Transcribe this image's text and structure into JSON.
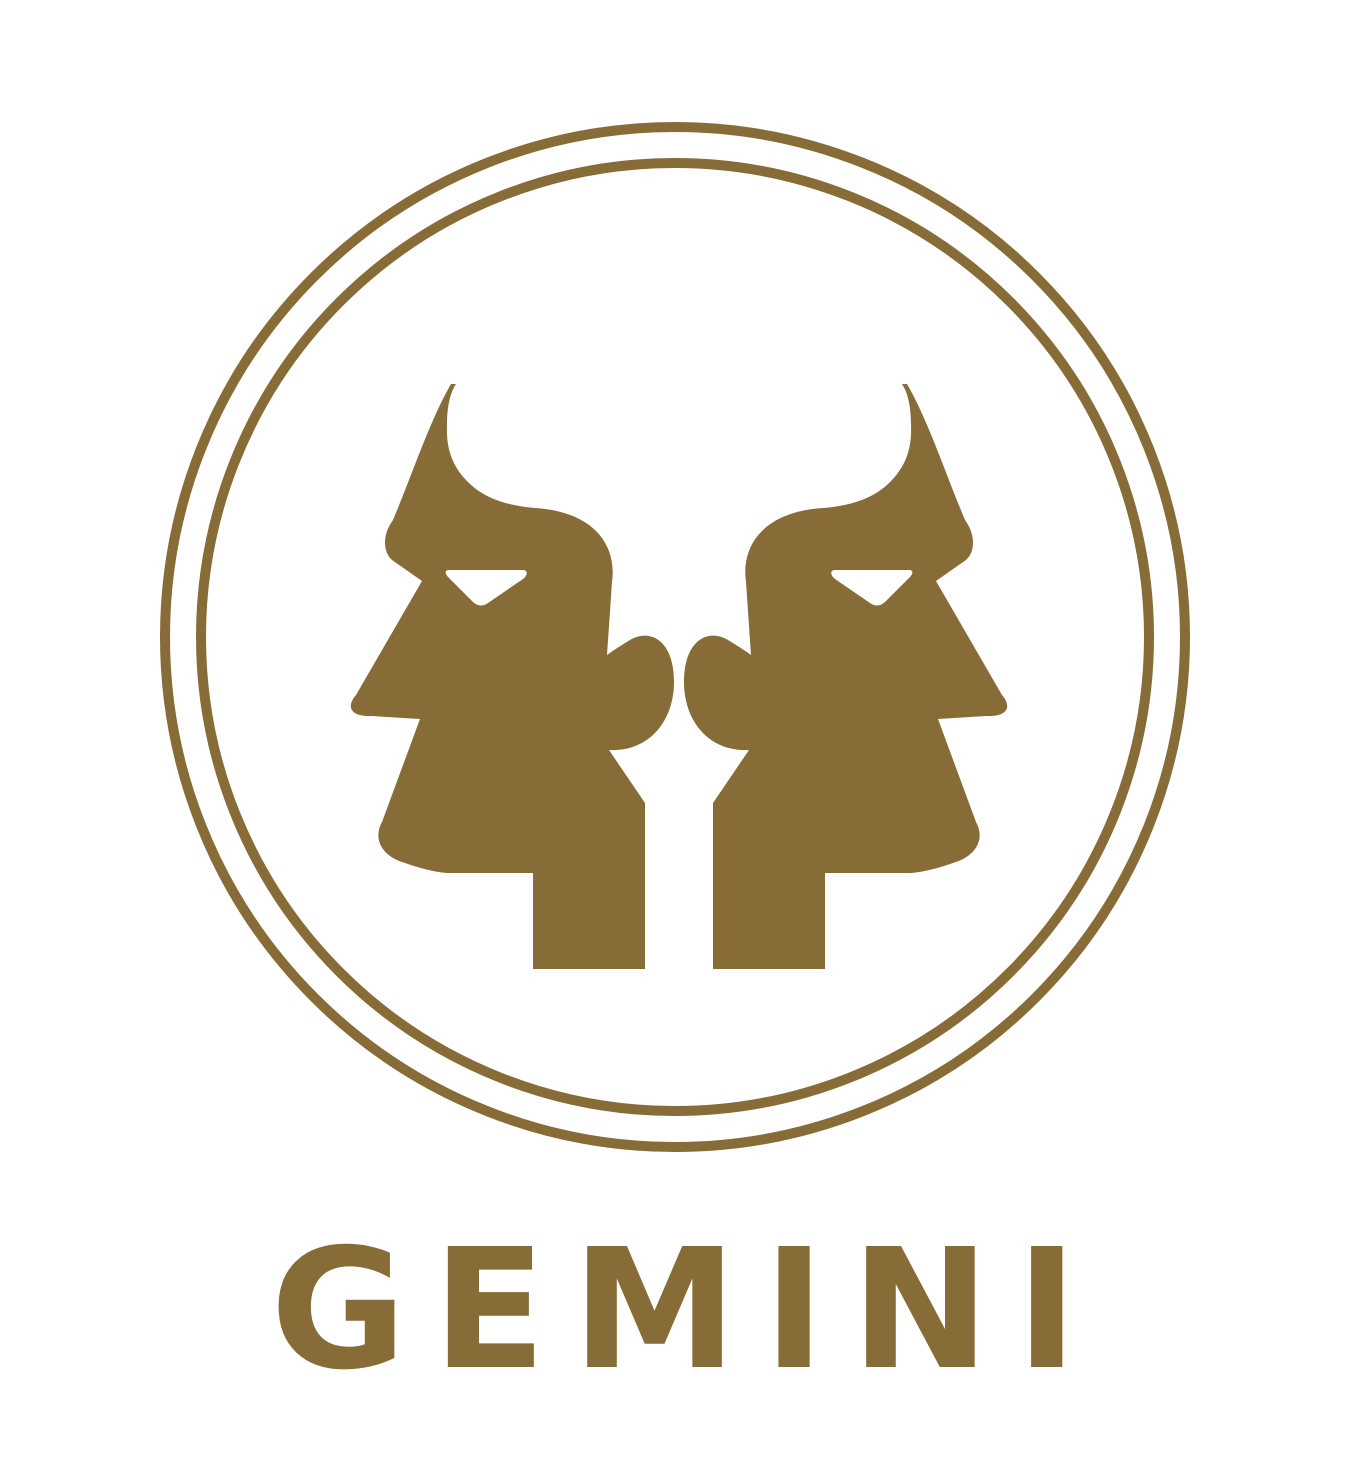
{
  "sign": {
    "name": "GEMINI",
    "icon": "gemini-twins-icon"
  },
  "colors": {
    "gold": "#876C38",
    "background": "#FFFFFF"
  }
}
